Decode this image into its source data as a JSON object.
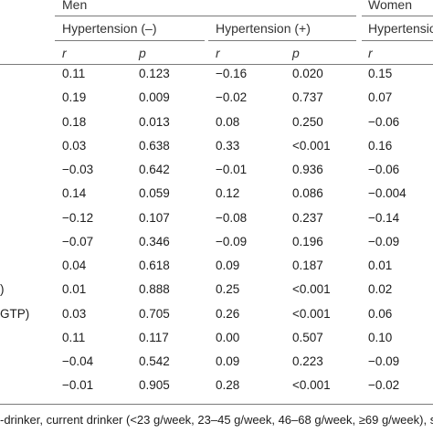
{
  "groups": {
    "men": "Men",
    "women": "Women"
  },
  "subgroups": {
    "men_neg": "Hypertension (–)",
    "men_pos": "Hypertension (+)",
    "women_neg": "Hypertensio"
  },
  "stats": {
    "r": "r",
    "p": "p"
  },
  "row_labels": [
    "",
    "",
    "",
    "",
    "",
    "",
    "",
    "",
    "",
    ")",
    "GTP)",
    "",
    "",
    ""
  ],
  "rows": [
    [
      "0.11",
      "0.123",
      "−0.16",
      "0.020",
      "0.15"
    ],
    [
      "0.19",
      "0.009",
      "−0.02",
      "0.737",
      "0.07"
    ],
    [
      "0.18",
      "0.013",
      "0.08",
      "0.250",
      "−0.06"
    ],
    [
      "0.03",
      "0.638",
      "0.33",
      "<0.001",
      "0.16"
    ],
    [
      "−0.03",
      "0.642",
      "−0.01",
      "0.936",
      "−0.06"
    ],
    [
      "0.14",
      "0.059",
      "0.12",
      "0.086",
      "−0.004"
    ],
    [
      "−0.12",
      "0.107",
      "−0.08",
      "0.237",
      "−0.14"
    ],
    [
      "−0.07",
      "0.346",
      "−0.09",
      "0.196",
      "−0.09"
    ],
    [
      "0.04",
      "0.618",
      "0.09",
      "0.187",
      "0.01"
    ],
    [
      "0.01",
      "0.888",
      "0.25",
      "<0.001",
      "0.02"
    ],
    [
      "0.03",
      "0.705",
      "0.26",
      "<0.001",
      "0.06"
    ],
    [
      "0.11",
      "0.117",
      "0.00",
      "0.507",
      "0.10"
    ],
    [
      "−0.04",
      "0.542",
      "0.09",
      "0.223",
      "−0.09"
    ],
    [
      "−0.01",
      "0.905",
      "0.28",
      "<0.001",
      "−0.02"
    ]
  ],
  "footnote": "-drinker, current drinker (<23 g/week, 23–45 g/week, 46–68 g/week, ≥69 g/week), sm"
}
